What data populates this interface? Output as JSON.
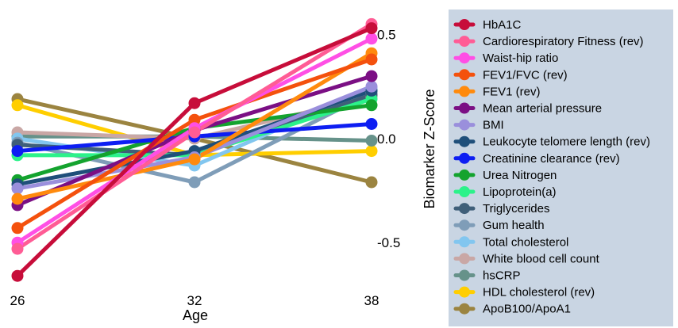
{
  "chart_data": {
    "type": "line",
    "title": "",
    "xlabel": "Age",
    "ylabel": "Biomarker Z-Score",
    "x": [
      26,
      32,
      38
    ],
    "x_ticks": [
      "26",
      "32",
      "38"
    ],
    "y_ticks": [
      {
        "value": 0.5,
        "label": "0.5"
      },
      {
        "value": 0.0,
        "label": "0.0"
      },
      {
        "value": -0.5,
        "label": "-0.5"
      }
    ],
    "ylim": [
      -0.72,
      0.62
    ],
    "grid": false,
    "y_axis_position": "right",
    "legend_placement": "right",
    "series": [
      {
        "name": "HbA1C",
        "color": "#c70d3a",
        "values": [
          -0.66,
          0.17,
          0.53
        ]
      },
      {
        "name": "Cardiorespiratory Fitness (rev)",
        "color": "#ff5c95",
        "values": [
          -0.53,
          0.03,
          0.55
        ]
      },
      {
        "name": "Waist-hip ratio",
        "color": "#ff4fe5",
        "values": [
          -0.5,
          0.05,
          0.48
        ]
      },
      {
        "name": "FEV1/FVC (rev)",
        "color": "#f4510d",
        "values": [
          -0.43,
          0.09,
          0.38
        ]
      },
      {
        "name": "FEV1 (rev)",
        "color": "#ff8a0d",
        "values": [
          -0.29,
          -0.1,
          0.41
        ]
      },
      {
        "name": "Mean arterial pressure",
        "color": "#7b0f84",
        "values": [
          -0.32,
          0.04,
          0.3
        ]
      },
      {
        "name": "BMI",
        "color": "#9a8fdc",
        "values": [
          -0.24,
          -0.09,
          0.25
        ]
      },
      {
        "name": "Leukocyte telomere length (rev)",
        "color": "#1f4f7a",
        "values": [
          -0.22,
          -0.06,
          0.23
        ]
      },
      {
        "name": "Creatinine clearance (rev)",
        "color": "#0d1ef2",
        "values": [
          -0.06,
          0.01,
          0.07
        ]
      },
      {
        "name": "Urea Nitrogen",
        "color": "#14a32e",
        "values": [
          -0.2,
          0.05,
          0.16
        ]
      },
      {
        "name": "Lipoprotein(a)",
        "color": "#2cf28a",
        "values": [
          -0.08,
          -0.08,
          0.19
        ]
      },
      {
        "name": "Triglycerides",
        "color": "#3f5f79",
        "values": [
          -0.03,
          -0.08,
          0.21
        ]
      },
      {
        "name": "Gum health",
        "color": "#7f9db8",
        "values": [
          -0.02,
          -0.21,
          0.22
        ]
      },
      {
        "name": "Total cholesterol",
        "color": "#82c6ef",
        "values": [
          0.0,
          -0.13,
          0.24
        ]
      },
      {
        "name": "White blood cell count",
        "color": "#c9a7a5",
        "values": [
          0.03,
          0.0,
          0.2
        ]
      },
      {
        "name": "hsCRP",
        "color": "#66928a",
        "values": [
          0.01,
          0.01,
          -0.01
        ]
      },
      {
        "name": "HDL cholesterol (rev)",
        "color": "#ffce00",
        "values": [
          0.16,
          -0.08,
          -0.06
        ]
      },
      {
        "name": "ApoB100/ApoA1",
        "color": "#9b8440",
        "values": [
          0.19,
          0.0,
          -0.21
        ]
      }
    ]
  }
}
